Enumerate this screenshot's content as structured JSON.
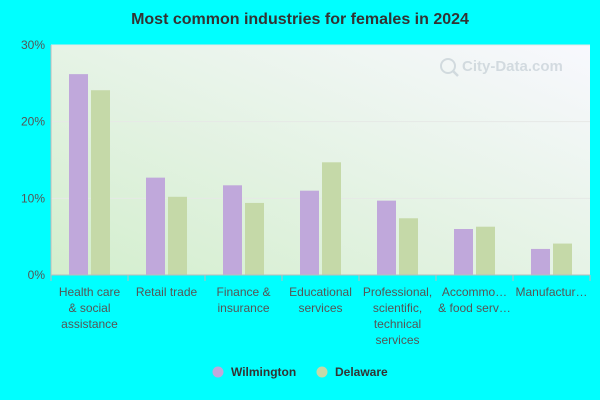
{
  "chart_data": {
    "type": "bar",
    "title": "Most common industries for females in 2024",
    "categories": [
      [
        "Health care",
        "& social",
        "assistance"
      ],
      [
        "Retail trade"
      ],
      [
        "Finance &",
        "insurance"
      ],
      [
        "Educational",
        "services"
      ],
      [
        "Professional,",
        "scientific,",
        "technical",
        "services"
      ],
      [
        "Accommo…",
        "& food serv…"
      ],
      [
        "Manufactur…"
      ]
    ],
    "series": [
      {
        "name": "Wilmington",
        "color": "#C0A8DB",
        "values": [
          26.2,
          12.7,
          11.7,
          11.0,
          9.7,
          6.0,
          3.4
        ]
      },
      {
        "name": "Delaware",
        "color": "#C5D9A8",
        "values": [
          24.1,
          10.2,
          9.4,
          14.7,
          7.4,
          6.3,
          4.1
        ]
      }
    ],
    "ylim": [
      0,
      30
    ],
    "yticks": [
      {
        "value": 0,
        "label": "0%"
      },
      {
        "value": 10,
        "label": "10%"
      },
      {
        "value": 20,
        "label": "20%"
      },
      {
        "value": 30,
        "label": "30%"
      }
    ],
    "grid": true,
    "legend": "bottom-center",
    "watermark": "City-Data.com"
  }
}
